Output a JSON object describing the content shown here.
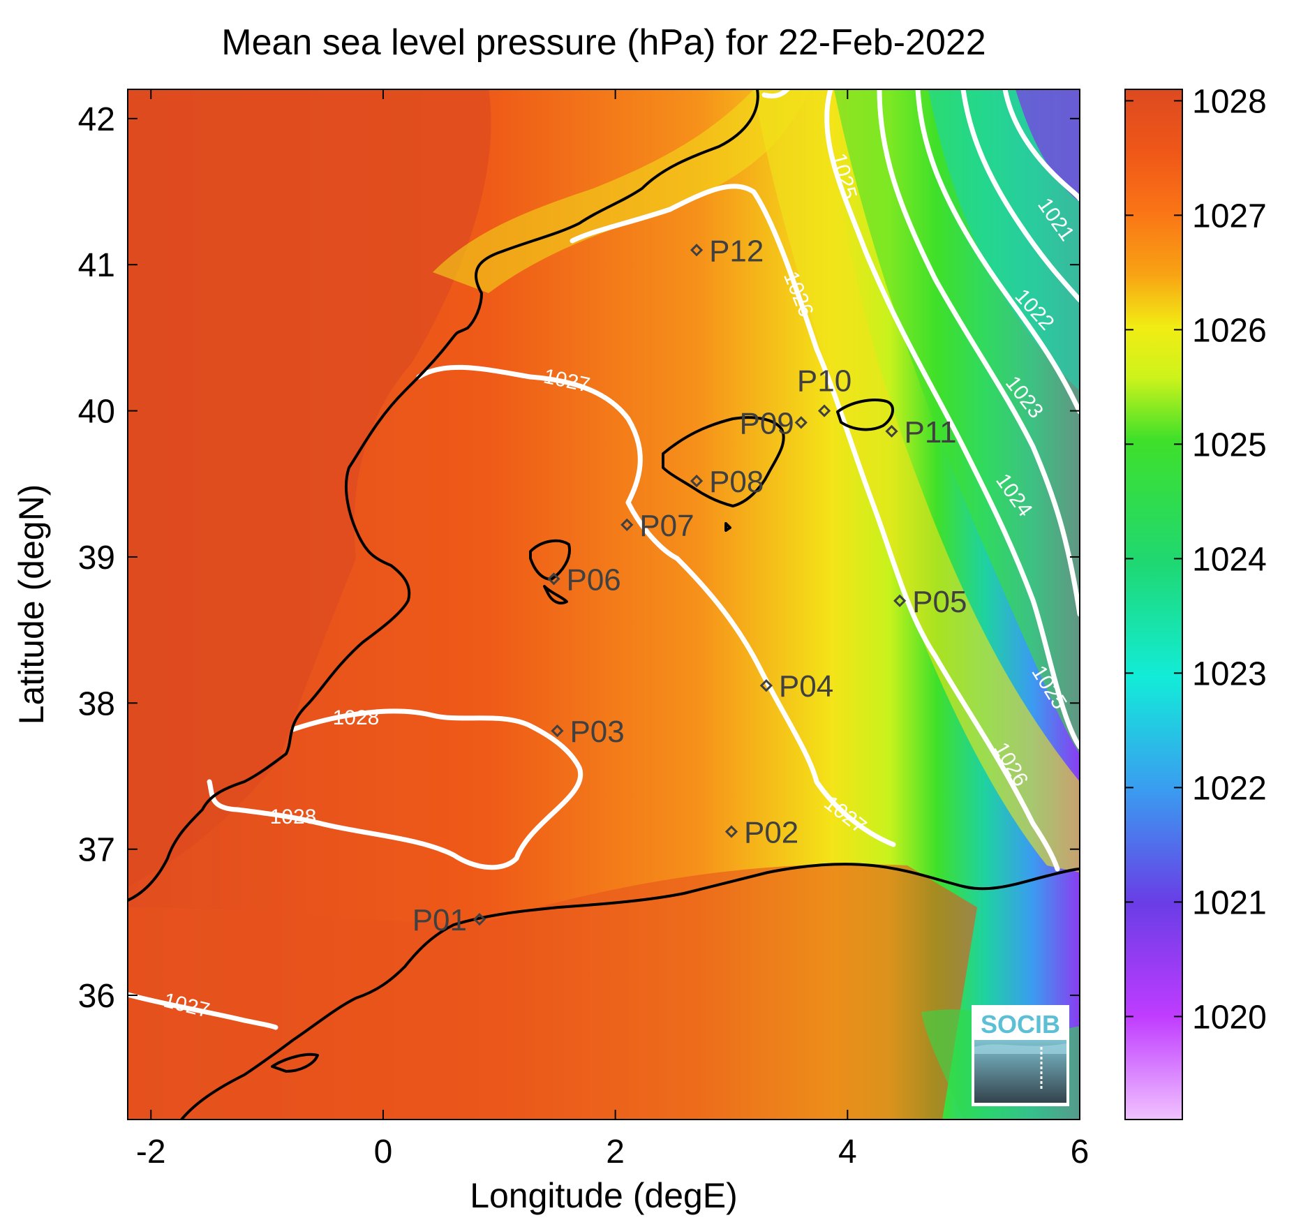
{
  "chart_data": {
    "type": "heatmap",
    "title": "Mean sea level pressure (hPa) for 22-Feb-2022",
    "xlabel": "Longitude (degE)",
    "ylabel": "Latitude (degN)",
    "xlim": [
      -2.2,
      6
    ],
    "ylim": [
      35.15,
      42.2
    ],
    "x_ticks": [
      -2,
      0,
      2,
      4,
      6
    ],
    "y_ticks": [
      36,
      37,
      38,
      39,
      40,
      41,
      42
    ],
    "colorbar": {
      "range": [
        1019.1,
        1028.1
      ],
      "ticks": [
        1020,
        1021,
        1022,
        1023,
        1024,
        1025,
        1026,
        1027,
        1028
      ],
      "colormap": [
        {
          "v": 1019.1,
          "color": "#f0c2ff"
        },
        {
          "v": 1020.0,
          "color": "#c03cff"
        },
        {
          "v": 1021.0,
          "color": "#6a3de6"
        },
        {
          "v": 1022.0,
          "color": "#3a9cf0"
        },
        {
          "v": 1023.0,
          "color": "#12ecd8"
        },
        {
          "v": 1024.0,
          "color": "#1fd872"
        },
        {
          "v": 1025.0,
          "color": "#3fe02a"
        },
        {
          "v": 1025.6,
          "color": "#cdf31b"
        },
        {
          "v": 1026.0,
          "color": "#f2ec14"
        },
        {
          "v": 1026.5,
          "color": "#f8a314"
        },
        {
          "v": 1027.0,
          "color": "#fa7516"
        },
        {
          "v": 1027.5,
          "color": "#ef5718"
        },
        {
          "v": 1028.1,
          "color": "#dd4a20"
        }
      ]
    },
    "contour_labels": [
      {
        "text": "1028",
        "lon": -0.2,
        "lat": 37.86
      },
      {
        "text": "1028",
        "lon": -0.6,
        "lat": 37.15
      },
      {
        "text": "1027",
        "lon": 1.8,
        "lat": 40.08
      },
      {
        "text": "1027",
        "lon": -1.7,
        "lat": 35.92
      },
      {
        "text": "1027",
        "lon": 3.5,
        "lat": 37.05
      },
      {
        "text": "1026",
        "lon": 3.4,
        "lat": 40.8
      },
      {
        "text": "1026",
        "lon": 5.3,
        "lat": 37.45
      },
      {
        "text": "1025",
        "lon": 3.95,
        "lat": 41.55
      },
      {
        "text": "1025",
        "lon": 5.7,
        "lat": 38.05
      },
      {
        "text": "1024",
        "lon": 5.25,
        "lat": 39.28
      },
      {
        "text": "1023",
        "lon": 5.35,
        "lat": 39.95
      },
      {
        "text": "1022",
        "lon": 5.65,
        "lat": 40.6
      },
      {
        "text": "1021",
        "lon": 5.75,
        "lat": 41.25
      }
    ],
    "stations": [
      {
        "name": "P01",
        "lon": 0.83,
        "lat": 36.52
      },
      {
        "name": "P02",
        "lon": 3.0,
        "lat": 37.12
      },
      {
        "name": "P03",
        "lon": 1.5,
        "lat": 37.81
      },
      {
        "name": "P04",
        "lon": 3.3,
        "lat": 38.12
      },
      {
        "name": "P05",
        "lon": 4.45,
        "lat": 38.7
      },
      {
        "name": "P06",
        "lon": 1.47,
        "lat": 38.85
      },
      {
        "name": "P07",
        "lon": 2.1,
        "lat": 39.22
      },
      {
        "name": "P08",
        "lon": 2.7,
        "lat": 39.52
      },
      {
        "name": "P09",
        "lon": 3.6,
        "lat": 39.92
      },
      {
        "name": "P10",
        "lon": 3.8,
        "lat": 40.0
      },
      {
        "name": "P11",
        "lon": 4.38,
        "lat": 39.86
      },
      {
        "name": "P12",
        "lon": 2.7,
        "lat": 41.1
      }
    ]
  },
  "logo": {
    "text": "SOCIB",
    "color": "#5bbfd6"
  }
}
